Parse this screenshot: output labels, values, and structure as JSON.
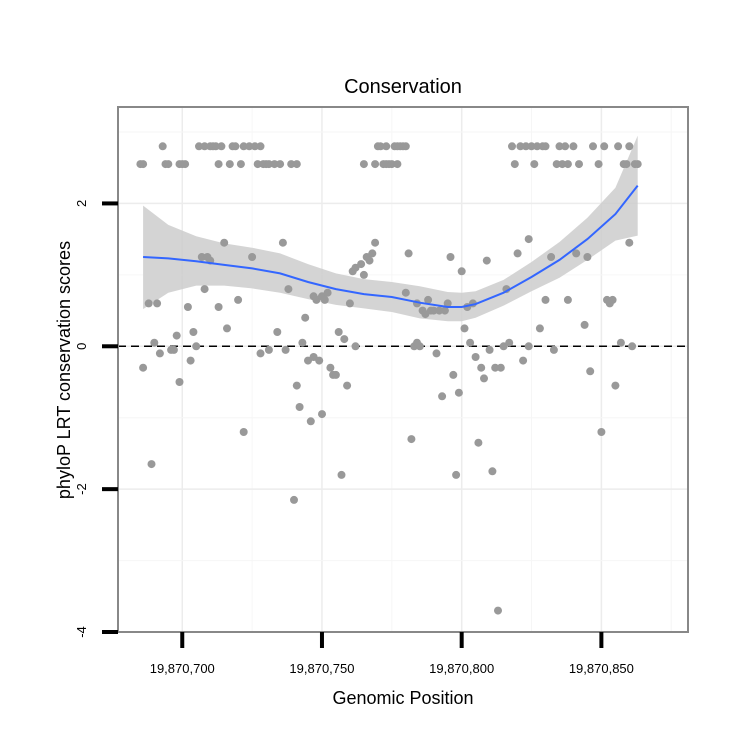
{
  "chart_data": {
    "type": "scatter",
    "title": "Conservation",
    "xlabel": "Genomic Position",
    "ylabel": "phyloP LRT conservation scores",
    "xlim": [
      19870677,
      19870881
    ],
    "ylim": [
      -4,
      3.35
    ],
    "xticks": [
      19870700,
      19870750,
      19870800,
      19870850
    ],
    "xtick_labels": [
      "19,870,700",
      "19,870,750",
      "19,870,800",
      "19,870,850"
    ],
    "yticks": [
      -4,
      -2,
      0,
      2
    ],
    "ytick_labels": [
      "-4",
      "-2",
      "0",
      "2"
    ],
    "grid": true,
    "reference_line": {
      "y": 0,
      "style": "dashed"
    },
    "point_color": "#999999",
    "smooth_color": "#3366ff",
    "band_color": "#cccccc",
    "points": [
      [
        19870685,
        2.55
      ],
      [
        19870686,
        2.55
      ],
      [
        19870686,
        -0.3
      ],
      [
        19870688,
        0.6
      ],
      [
        19870689,
        -1.65
      ],
      [
        19870690,
        0.05
      ],
      [
        19870691,
        0.6
      ],
      [
        19870692,
        -0.1
      ],
      [
        19870693,
        2.8
      ],
      [
        19870694,
        2.55
      ],
      [
        19870695,
        2.55
      ],
      [
        19870696,
        -0.05
      ],
      [
        19870697,
        -0.05
      ],
      [
        19870698,
        0.15
      ],
      [
        19870699,
        -0.5
      ],
      [
        19870699,
        2.55
      ],
      [
        19870700,
        2.55
      ],
      [
        19870701,
        2.55
      ],
      [
        19870702,
        0.55
      ],
      [
        19870703,
        -0.2
      ],
      [
        19870704,
        0.2
      ],
      [
        19870705,
        0.0
      ],
      [
        19870706,
        2.8
      ],
      [
        19870707,
        1.25
      ],
      [
        19870708,
        0.8
      ],
      [
        19870708,
        2.8
      ],
      [
        19870709,
        1.25
      ],
      [
        19870710,
        1.2
      ],
      [
        19870710,
        2.8
      ],
      [
        19870711,
        2.8
      ],
      [
        19870712,
        2.8
      ],
      [
        19870713,
        0.55
      ],
      [
        19870713,
        2.55
      ],
      [
        19870714,
        2.8
      ],
      [
        19870715,
        1.45
      ],
      [
        19870716,
        0.25
      ],
      [
        19870717,
        2.55
      ],
      [
        19870718,
        2.8
      ],
      [
        19870719,
        2.8
      ],
      [
        19870720,
        0.65
      ],
      [
        19870721,
        2.55
      ],
      [
        19870722,
        2.8
      ],
      [
        19870722,
        -1.2
      ],
      [
        19870724,
        2.8
      ],
      [
        19870725,
        1.25
      ],
      [
        19870726,
        2.8
      ],
      [
        19870727,
        2.55
      ],
      [
        19870728,
        2.8
      ],
      [
        19870728,
        -0.1
      ],
      [
        19870729,
        2.55
      ],
      [
        19870730,
        2.55
      ],
      [
        19870731,
        -0.05
      ],
      [
        19870731,
        2.55
      ],
      [
        19870733,
        2.55
      ],
      [
        19870734,
        0.2
      ],
      [
        19870735,
        2.55
      ],
      [
        19870736,
        1.45
      ],
      [
        19870737,
        -0.05
      ],
      [
        19870738,
        0.8
      ],
      [
        19870739,
        2.55
      ],
      [
        19870740,
        -2.15
      ],
      [
        19870741,
        2.55
      ],
      [
        19870741,
        -0.55
      ],
      [
        19870742,
        -0.85
      ],
      [
        19870743,
        0.05
      ],
      [
        19870744,
        0.4
      ],
      [
        19870745,
        -0.2
      ],
      [
        19870746,
        -1.05
      ],
      [
        19870747,
        -0.15
      ],
      [
        19870747,
        0.7
      ],
      [
        19870748,
        0.65
      ],
      [
        19870749,
        -0.2
      ],
      [
        19870750,
        -0.95
      ],
      [
        19870750,
        0.7
      ],
      [
        19870751,
        0.65
      ],
      [
        19870752,
        0.75
      ],
      [
        19870753,
        -0.3
      ],
      [
        19870754,
        -0.4
      ],
      [
        19870755,
        -0.4
      ],
      [
        19870756,
        0.2
      ],
      [
        19870757,
        -1.8
      ],
      [
        19870758,
        0.1
      ],
      [
        19870759,
        -0.55
      ],
      [
        19870760,
        0.6
      ],
      [
        19870761,
        1.05
      ],
      [
        19870762,
        0.0
      ],
      [
        19870762,
        1.1
      ],
      [
        19870764,
        1.15
      ],
      [
        19870765,
        1.0
      ],
      [
        19870765,
        2.55
      ],
      [
        19870766,
        1.25
      ],
      [
        19870767,
        1.2
      ],
      [
        19870768,
        1.3
      ],
      [
        19870769,
        1.45
      ],
      [
        19870769,
        2.55
      ],
      [
        19870770,
        2.8
      ],
      [
        19870771,
        2.8
      ],
      [
        19870772,
        2.55
      ],
      [
        19870773,
        2.55
      ],
      [
        19870773,
        2.8
      ],
      [
        19870774,
        2.55
      ],
      [
        19870775,
        2.55
      ],
      [
        19870776,
        2.8
      ],
      [
        19870777,
        2.8
      ],
      [
        19870777,
        2.55
      ],
      [
        19870778,
        2.8
      ],
      [
        19870779,
        2.8
      ],
      [
        19870780,
        2.8
      ],
      [
        19870780,
        0.75
      ],
      [
        19870781,
        1.3
      ],
      [
        19870782,
        -1.3
      ],
      [
        19870783,
        0.0
      ],
      [
        19870784,
        0.05
      ],
      [
        19870784,
        0.6
      ],
      [
        19870785,
        0.0
      ],
      [
        19870786,
        0.5
      ],
      [
        19870787,
        0.45
      ],
      [
        19870788,
        0.65
      ],
      [
        19870789,
        0.5
      ],
      [
        19870790,
        0.5
      ],
      [
        19870791,
        -0.1
      ],
      [
        19870792,
        0.5
      ],
      [
        19870793,
        -0.7
      ],
      [
        19870794,
        0.5
      ],
      [
        19870795,
        0.6
      ],
      [
        19870796,
        1.25
      ],
      [
        19870797,
        -0.4
      ],
      [
        19870798,
        -1.8
      ],
      [
        19870799,
        -0.65
      ],
      [
        19870800,
        1.05
      ],
      [
        19870801,
        0.25
      ],
      [
        19870802,
        0.55
      ],
      [
        19870803,
        0.05
      ],
      [
        19870804,
        0.6
      ],
      [
        19870805,
        -0.15
      ],
      [
        19870806,
        -1.35
      ],
      [
        19870807,
        -0.3
      ],
      [
        19870808,
        -0.45
      ],
      [
        19870809,
        1.2
      ],
      [
        19870810,
        -0.05
      ],
      [
        19870811,
        -1.75
      ],
      [
        19870812,
        -0.3
      ],
      [
        19870813,
        -3.7
      ],
      [
        19870814,
        -0.3
      ],
      [
        19870815,
        0.0
      ],
      [
        19870816,
        0.8
      ],
      [
        19870817,
        0.05
      ],
      [
        19870818,
        2.8
      ],
      [
        19870819,
        2.55
      ],
      [
        19870820,
        1.3
      ],
      [
        19870821,
        2.8
      ],
      [
        19870822,
        -0.2
      ],
      [
        19870823,
        2.8
      ],
      [
        19870824,
        1.5
      ],
      [
        19870824,
        0.0
      ],
      [
        19870825,
        2.8
      ],
      [
        19870826,
        2.55
      ],
      [
        19870827,
        2.8
      ],
      [
        19870828,
        0.25
      ],
      [
        19870829,
        2.8
      ],
      [
        19870830,
        0.65
      ],
      [
        19870830,
        2.8
      ],
      [
        19870832,
        1.25
      ],
      [
        19870833,
        -0.05
      ],
      [
        19870834,
        2.55
      ],
      [
        19870835,
        2.8
      ],
      [
        19870836,
        2.55
      ],
      [
        19870837,
        2.8
      ],
      [
        19870838,
        0.65
      ],
      [
        19870838,
        2.55
      ],
      [
        19870840,
        2.8
      ],
      [
        19870841,
        1.3
      ],
      [
        19870842,
        2.55
      ],
      [
        19870844,
        0.3
      ],
      [
        19870845,
        1.25
      ],
      [
        19870846,
        -0.35
      ],
      [
        19870847,
        2.8
      ],
      [
        19870849,
        2.55
      ],
      [
        19870850,
        -1.2
      ],
      [
        19870851,
        2.8
      ],
      [
        19870852,
        0.65
      ],
      [
        19870853,
        0.6
      ],
      [
        19870854,
        0.65
      ],
      [
        19870855,
        -0.55
      ],
      [
        19870856,
        2.8
      ],
      [
        19870857,
        0.05
      ],
      [
        19870858,
        2.55
      ],
      [
        19870859,
        2.55
      ],
      [
        19870860,
        2.8
      ],
      [
        19870860,
        1.45
      ],
      [
        19870861,
        0.0
      ],
      [
        19870862,
        2.55
      ],
      [
        19870863,
        2.55
      ]
    ],
    "smooth_line": [
      [
        19870686,
        1.25
      ],
      [
        19870695,
        1.23
      ],
      [
        19870705,
        1.19
      ],
      [
        19870715,
        1.14
      ],
      [
        19870725,
        1.09
      ],
      [
        19870735,
        1.02
      ],
      [
        19870745,
        0.9
      ],
      [
        19870755,
        0.8
      ],
      [
        19870765,
        0.73
      ],
      [
        19870775,
        0.69
      ],
      [
        19870785,
        0.61
      ],
      [
        19870795,
        0.55
      ],
      [
        19870800,
        0.55
      ],
      [
        19870805,
        0.59
      ],
      [
        19870815,
        0.75
      ],
      [
        19870825,
        0.97
      ],
      [
        19870835,
        1.21
      ],
      [
        19870845,
        1.5
      ],
      [
        19870855,
        1.85
      ],
      [
        19870863,
        2.25
      ]
    ],
    "band_upper": [
      [
        19870686,
        1.97
      ],
      [
        19870695,
        1.7
      ],
      [
        19870705,
        1.54
      ],
      [
        19870715,
        1.44
      ],
      [
        19870725,
        1.38
      ],
      [
        19870735,
        1.3
      ],
      [
        19870745,
        1.15
      ],
      [
        19870755,
        1.02
      ],
      [
        19870765,
        0.94
      ],
      [
        19870775,
        0.9
      ],
      [
        19870785,
        0.84
      ],
      [
        19870795,
        0.76
      ],
      [
        19870800,
        0.75
      ],
      [
        19870805,
        0.77
      ],
      [
        19870815,
        0.93
      ],
      [
        19870825,
        1.18
      ],
      [
        19870835,
        1.46
      ],
      [
        19870845,
        1.8
      ],
      [
        19870855,
        2.22
      ],
      [
        19870863,
        2.95
      ]
    ],
    "band_lower": [
      [
        19870686,
        0.52
      ],
      [
        19870695,
        0.75
      ],
      [
        19870705,
        0.85
      ],
      [
        19870715,
        0.85
      ],
      [
        19870725,
        0.81
      ],
      [
        19870735,
        0.75
      ],
      [
        19870745,
        0.66
      ],
      [
        19870755,
        0.58
      ],
      [
        19870765,
        0.53
      ],
      [
        19870775,
        0.48
      ],
      [
        19870785,
        0.39
      ],
      [
        19870795,
        0.35
      ],
      [
        19870800,
        0.35
      ],
      [
        19870805,
        0.4
      ],
      [
        19870815,
        0.57
      ],
      [
        19870825,
        0.77
      ],
      [
        19870835,
        0.96
      ],
      [
        19870845,
        1.21
      ],
      [
        19870855,
        1.48
      ],
      [
        19870863,
        1.55
      ]
    ]
  }
}
